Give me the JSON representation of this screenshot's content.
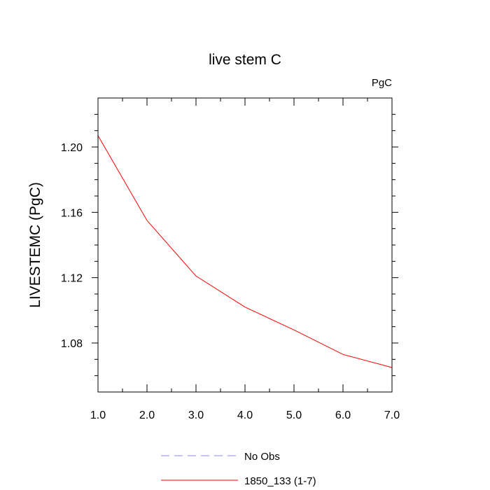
{
  "chart_data": {
    "type": "line",
    "title": "live stem C",
    "units_label": "PgC",
    "ylabel": "LIVESTEMC  (PgC)",
    "xlabel": "",
    "xlim": [
      1.0,
      7.0
    ],
    "ylim": [
      1.05,
      1.23
    ],
    "x_ticks": [
      1.0,
      2.0,
      3.0,
      4.0,
      5.0,
      6.0,
      7.0
    ],
    "x_tick_labels": [
      "1.0",
      "2.0",
      "3.0",
      "4.0",
      "5.0",
      "6.0",
      "7.0"
    ],
    "y_ticks": [
      1.08,
      1.12,
      1.16,
      1.2
    ],
    "y_tick_labels": [
      "1.08",
      "1.12",
      "1.16",
      "1.20"
    ],
    "grid": false,
    "legend_position": "bottom-center",
    "series": [
      {
        "name": "1850_133 (1-7)",
        "color": "#ff0000",
        "style": "solid",
        "x": [
          1.0,
          2.0,
          3.0,
          4.0,
          5.0,
          6.0,
          7.0
        ],
        "y": [
          1.207,
          1.155,
          1.121,
          1.102,
          1.088,
          1.073,
          1.065
        ]
      }
    ],
    "legend": [
      {
        "label": "No Obs",
        "color": "#8888ee",
        "style": "dashed"
      },
      {
        "label": "1850_133 (1-7)",
        "color": "#ff0000",
        "style": "solid"
      }
    ]
  }
}
